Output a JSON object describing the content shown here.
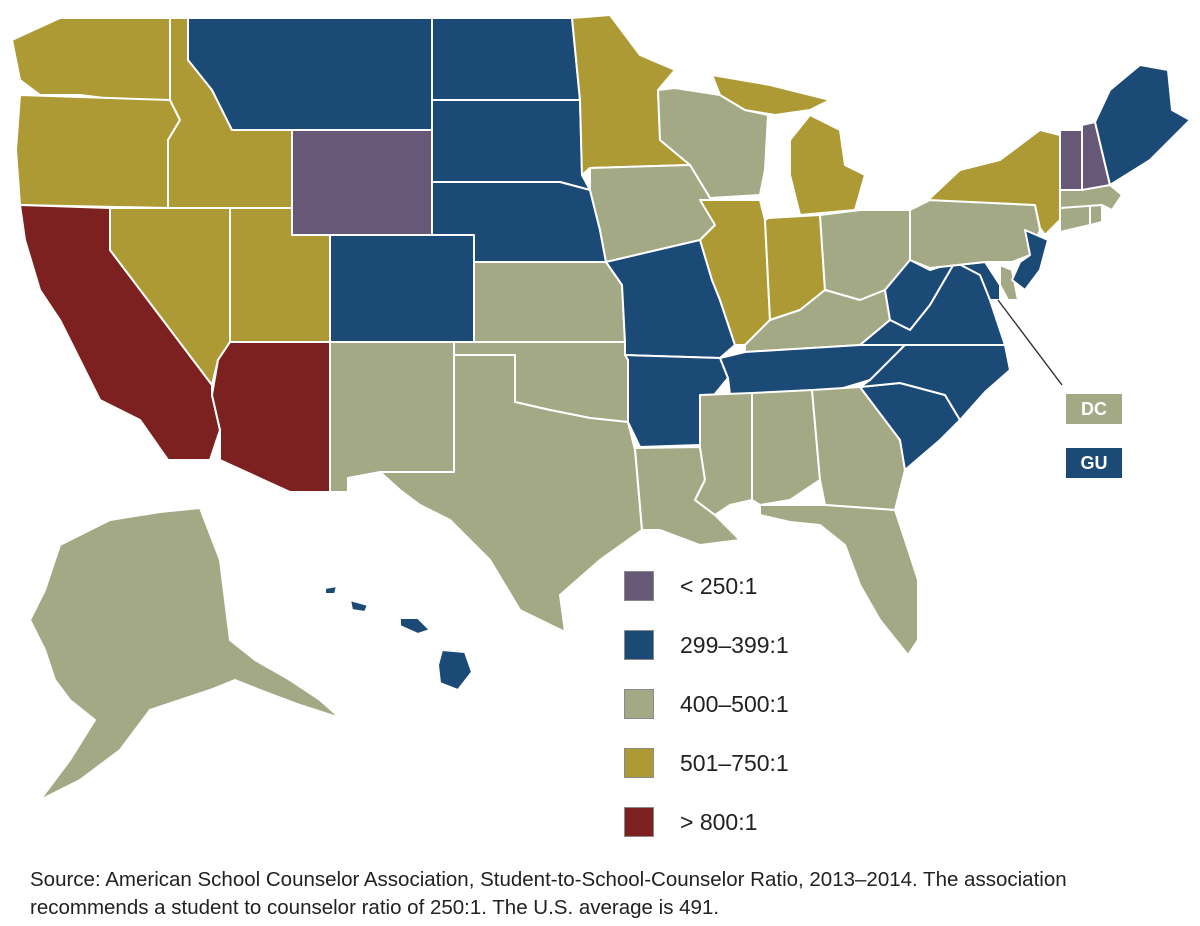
{
  "colors": {
    "lt250": "#675878",
    "r299": "#1c4a76",
    "r400": "#a3a985",
    "r501": "#ad9a34",
    "gt800": "#7c2020"
  },
  "legend": [
    {
      "key": "lt250",
      "label": "< 250:1"
    },
    {
      "key": "r299",
      "label": "299–399:1"
    },
    {
      "key": "r400",
      "label": "400–500:1"
    },
    {
      "key": "r501",
      "label": "501–750:1"
    },
    {
      "key": "gt800",
      "label": "> 800:1"
    }
  ],
  "callouts": [
    {
      "label": "DC",
      "key": "r400"
    },
    {
      "label": "GU",
      "key": "r299"
    }
  ],
  "state_categories": {
    "WA": "r501",
    "OR": "r501",
    "ID": "r501",
    "NV": "r501",
    "UT": "r501",
    "MN": "r501",
    "MI": "r501",
    "IL": "r501",
    "IN": "r501",
    "NY": "r501",
    "CA": "gt800",
    "AZ": "gt800",
    "WY": "lt250",
    "VT": "lt250",
    "NH": "lt250",
    "MT": "r299",
    "ND": "r299",
    "SD": "r299",
    "NE": "r299",
    "CO": "r299",
    "MO": "r299",
    "AR": "r299",
    "TN": "r299",
    "WV": "r299",
    "VA": "r299",
    "NC": "r299",
    "SC": "r299",
    "NJ": "r299",
    "MD": "r299",
    "ME": "r299",
    "HI": "r299",
    "NM": "r400",
    "TX": "r400",
    "OK": "r400",
    "KS": "r400",
    "IA": "r400",
    "WI": "r400",
    "LA": "r400",
    "MS": "r400",
    "AL": "r400",
    "GA": "r400",
    "FL": "r400",
    "KY": "r400",
    "OH": "r400",
    "PA": "r400",
    "DE": "r400",
    "MA": "r400",
    "CT": "r400",
    "RI": "r400",
    "AK": "r400",
    "DC": "r400"
  },
  "source_text": "Source: American School Counselor Association, Student-to-School-Counselor Ratio, 2013–2014. The association recommends a student to counselor ratio of 250:1. The U.S. average is 491."
}
